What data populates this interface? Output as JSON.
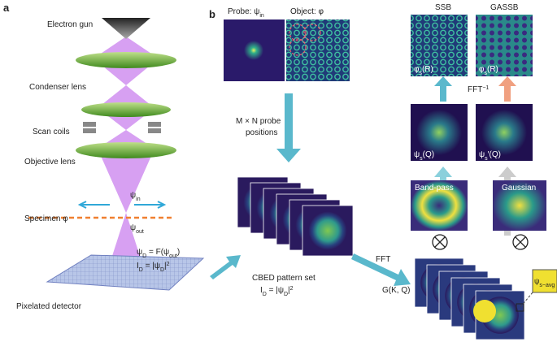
{
  "panel_a": {
    "label": "a",
    "electron_gun": "Electron gun",
    "condenser_lens": "Condenser lens",
    "scan_coils": "Scan coils",
    "objective_lens": "Objective lens",
    "specimen": [
      {
        "text": "Specimen "
      },
      {
        "text": "φ"
      }
    ],
    "psi_in": [
      {
        "text": "ψ"
      },
      {
        "sub": "in"
      }
    ],
    "psi_out": [
      {
        "text": "ψ"
      },
      {
        "sub": "out"
      }
    ],
    "detector_wave": [
      {
        "text": "ψ"
      },
      {
        "sub": "D"
      },
      {
        "text": " = F(ψ"
      },
      {
        "sub": "out"
      },
      {
        "text": ")"
      }
    ],
    "detector_intensity": [
      {
        "text": "I"
      },
      {
        "sub": "D"
      },
      {
        "text": " = |ψ"
      },
      {
        "sub": "D"
      },
      {
        "text": "|"
      },
      {
        "sup": "2"
      }
    ],
    "pixelated_detector": "Pixelated detector"
  },
  "panel_b": {
    "label": "b",
    "probe": [
      {
        "text": "Probe: ψ"
      },
      {
        "sub": "in"
      }
    ],
    "object": [
      {
        "text": "Object: φ"
      }
    ],
    "scan_line1": "M × N probe",
    "scan_line2": "positions",
    "cbed": "CBED pattern set",
    "cbed_intensity": [
      {
        "text": "I"
      },
      {
        "sub": "D"
      },
      {
        "text": " = |ψ"
      },
      {
        "sub": "D"
      },
      {
        "text": "|"
      },
      {
        "sup": "2"
      }
    ],
    "fft": "FFT",
    "g": [
      {
        "text": "G("
      },
      {
        "text": "K"
      },
      {
        "text": ", "
      },
      {
        "text": "Q"
      },
      {
        "text": ")"
      }
    ],
    "ssb": "SSB",
    "gassb": "GASSB",
    "phi_ssb": [
      {
        "text": "φ"
      },
      {
        "sub": "s"
      },
      {
        "text": "(R)"
      }
    ],
    "phi_gassb": [
      {
        "text": "φ"
      },
      {
        "sub": "s"
      },
      {
        "text": "(R)"
      }
    ],
    "ifft": [
      {
        "text": "FFT"
      },
      {
        "sup": "−1"
      }
    ],
    "psi_s": [
      {
        "text": "ψ"
      },
      {
        "sub": "s"
      },
      {
        "text": "(Q)"
      }
    ],
    "psi_s_prime": [
      {
        "text": "ψ"
      },
      {
        "sub": "s"
      },
      {
        "text": "′(Q)"
      }
    ],
    "band_pass": "Band-pass",
    "gaussian": "Gaussian",
    "psi_avg": [
      {
        "text": "ψ"
      },
      {
        "sub": "s−avg"
      }
    ]
  }
}
